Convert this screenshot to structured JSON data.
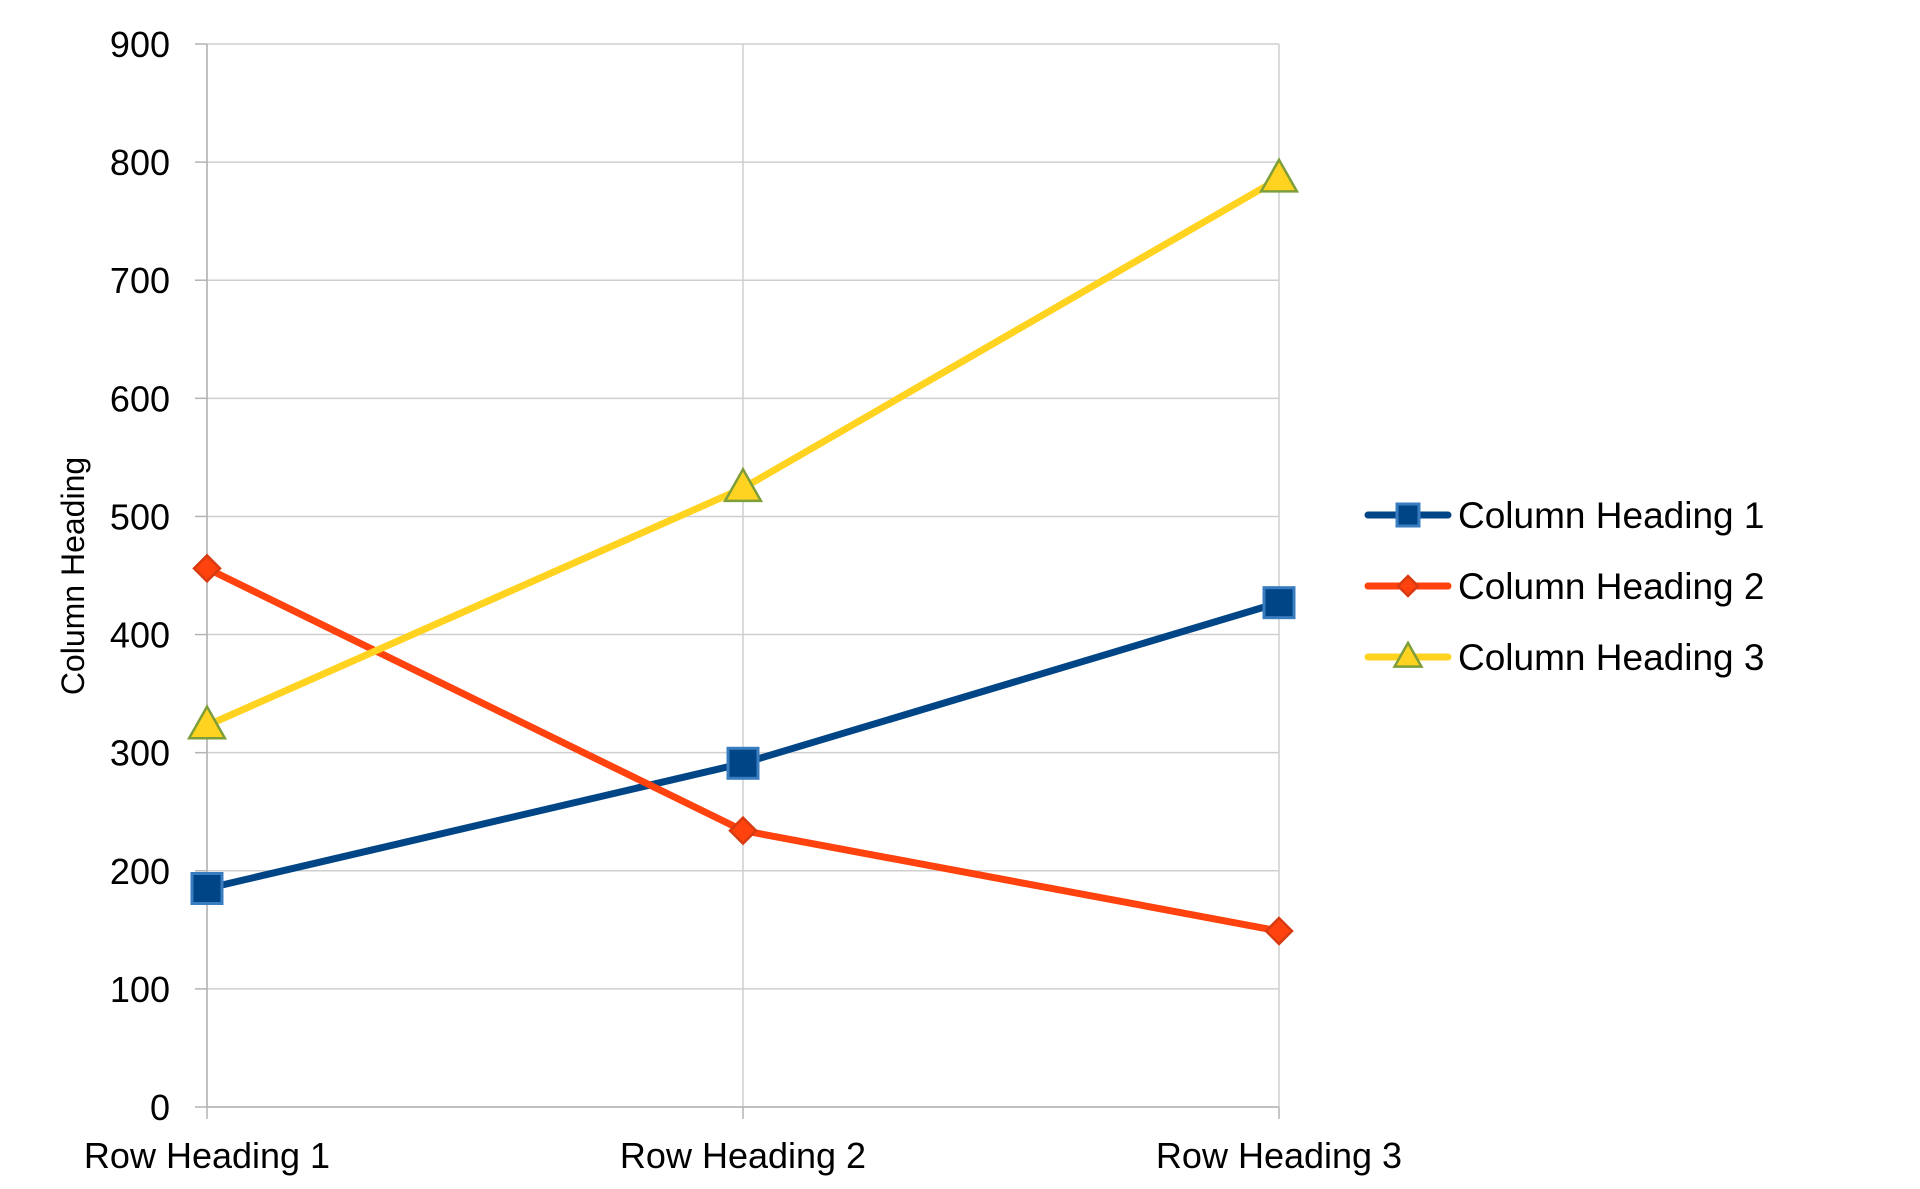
{
  "chart_data": {
    "type": "line",
    "title": "",
    "xlabel": "",
    "ylabel": "Column Heading",
    "categories": [
      "Row Heading 1",
      "Row Heading 2",
      "Row Heading 3"
    ],
    "ylim": [
      0,
      900
    ],
    "yticks": [
      0,
      100,
      200,
      300,
      400,
      500,
      600,
      700,
      800,
      900
    ],
    "ytick_labels": [
      "0",
      "100",
      "200",
      "300",
      "400",
      "500",
      "600",
      "700",
      "800",
      "900"
    ],
    "grid": true,
    "legend": "right",
    "series": [
      {
        "name": "Column Heading 1",
        "values": [
          185,
          291,
          427
        ],
        "color": "#004586",
        "marker": "square"
      },
      {
        "name": "Column Heading 2",
        "values": [
          456,
          234,
          149
        ],
        "color": "#ff420e",
        "marker": "diamond"
      },
      {
        "name": "Column Heading 3",
        "values": [
          323,
          524,
          786
        ],
        "color": "#ffd320",
        "marker": "triangle"
      }
    ]
  }
}
